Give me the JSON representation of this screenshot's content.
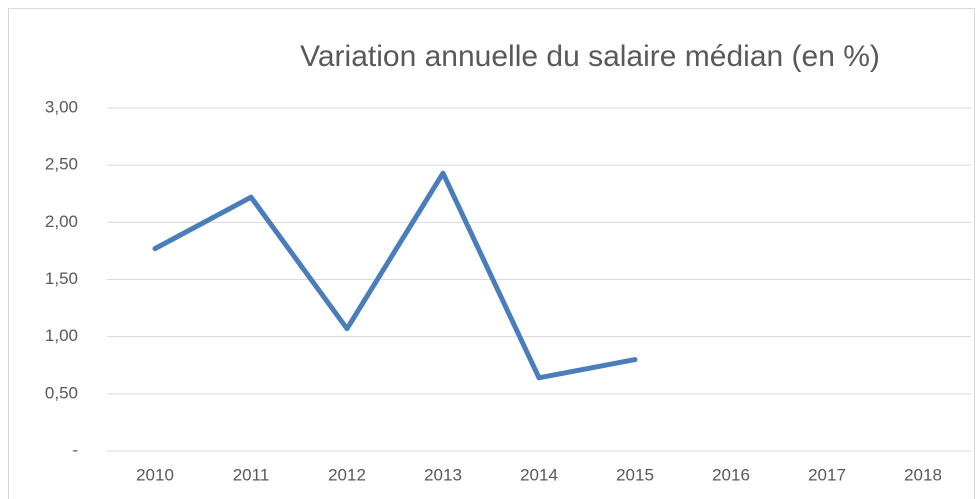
{
  "chart_data": {
    "type": "line",
    "title": "Variation annuelle du salaire médian (en %)",
    "categories": [
      "2010",
      "2011",
      "2012",
      "2013",
      "2014",
      "2015",
      "2016",
      "2017",
      "2018"
    ],
    "values": [
      1.77,
      2.22,
      1.07,
      2.43,
      0.64,
      0.8,
      null,
      null,
      null
    ],
    "color": "#4a7ebb",
    "ylim": [
      0,
      3
    ],
    "yticks": [
      {
        "value": 0,
        "label": "-"
      },
      {
        "value": 0.5,
        "label": "0,50"
      },
      {
        "value": 1,
        "label": "1,00"
      },
      {
        "value": 1.5,
        "label": "1,50"
      },
      {
        "value": 2,
        "label": "2,00"
      },
      {
        "value": 2.5,
        "label": "2,50"
      },
      {
        "value": 3,
        "label": "3,00"
      }
    ],
    "grid": true
  }
}
